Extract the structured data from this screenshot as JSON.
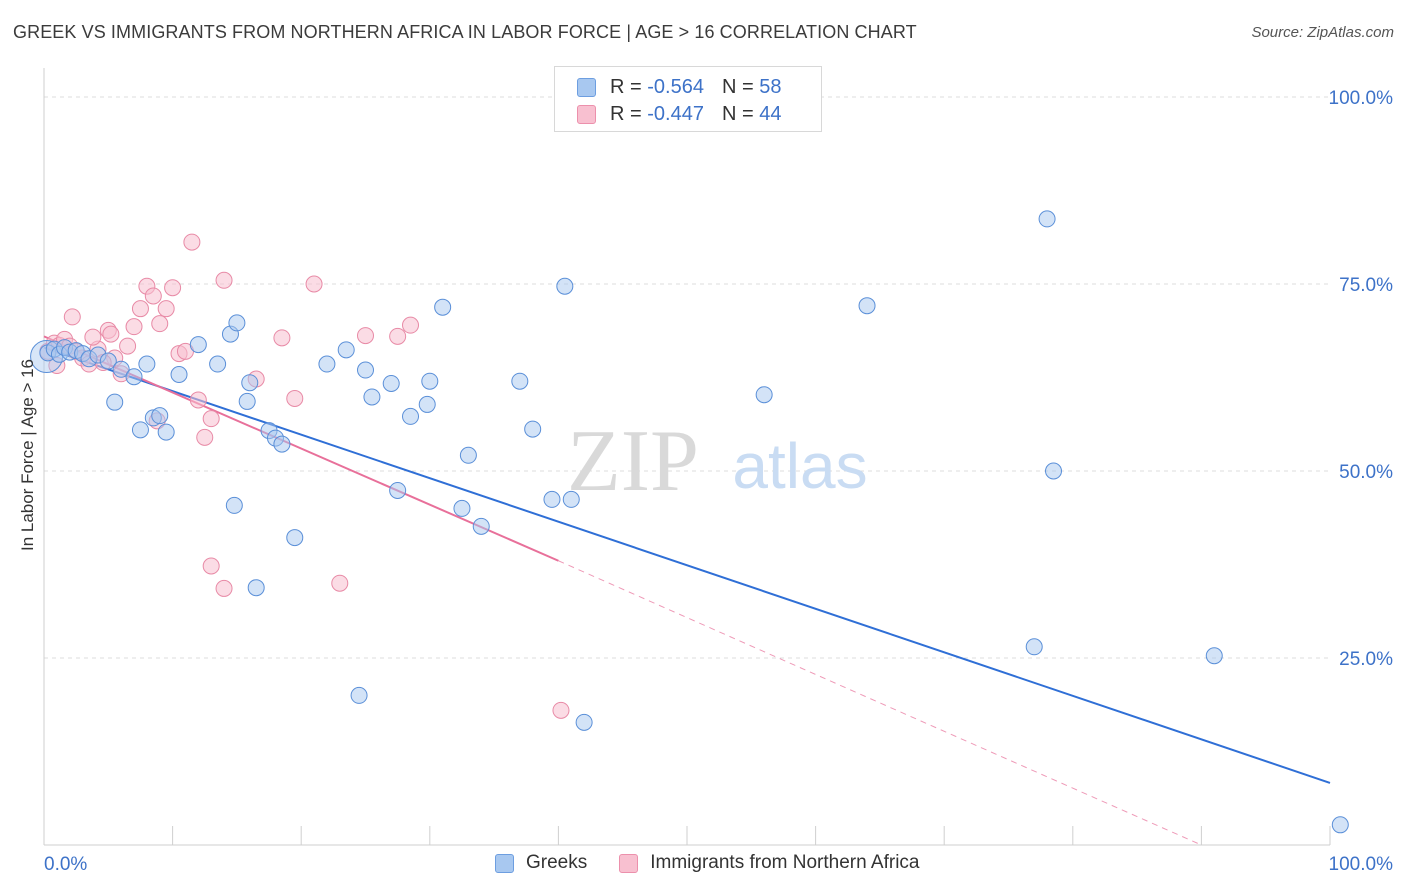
{
  "header": {
    "title": "GREEK VS IMMIGRANTS FROM NORTHERN AFRICA IN LABOR FORCE | AGE > 16 CORRELATION CHART",
    "source": "Source: ZipAtlas.com"
  },
  "watermark": {
    "zip": "ZIP",
    "atlas": "atlas"
  },
  "stats_legend": [
    {
      "r_label": "R =",
      "r_value": "-0.564",
      "n_label": "N =",
      "n_value": "58",
      "color": "#a8c8f0",
      "border": "#6d9ee0"
    },
    {
      "r_label": "R =",
      "r_value": "-0.447",
      "n_label": "N =",
      "n_value": "44",
      "color": "#f8c0d0",
      "border": "#ec90ac"
    }
  ],
  "bottom_legend": [
    {
      "label": "Greeks",
      "color": "#a8c8f0",
      "border": "#6d9ee0"
    },
    {
      "label": "Immigrants from Northern Africa",
      "color": "#f8c0d0",
      "border": "#ec90ac"
    }
  ],
  "chart_data": {
    "type": "scatter",
    "xlabel": "",
    "ylabel": "In Labor Force | Age > 16",
    "xlim": [
      0,
      100
    ],
    "ylim": [
      0,
      100
    ],
    "x_tick_labels": {
      "left": "0.0%",
      "right": "100.0%"
    },
    "y_ticks": [
      {
        "value": 100,
        "label": "100.0%"
      },
      {
        "value": 75,
        "label": "75.0%"
      },
      {
        "value": 50,
        "label": "50.0%"
      },
      {
        "value": 25,
        "label": "25.0%"
      }
    ],
    "grid": "horizontal dashed",
    "legend_position": "top-center",
    "colors": {
      "greeks_fill": "#a8c8f0",
      "greeks_stroke": "#5a8fd8",
      "greeks_line": "#2f6fd6",
      "naf_fill": "#f8c0d0",
      "naf_stroke": "#e88aa6",
      "naf_line": "#e8709a",
      "tick_label": "#3d72c8"
    },
    "series": [
      {
        "name": "Greeks",
        "trend": {
          "x0": 0,
          "y0": 66.5,
          "x1": 100,
          "y1": 8.3
        },
        "points": [
          [
            0.3,
            65.8
          ],
          [
            0.8,
            66.3
          ],
          [
            1.2,
            65.6
          ],
          [
            1.6,
            66.5
          ],
          [
            2.0,
            65.9
          ],
          [
            2.5,
            66.1
          ],
          [
            3.0,
            65.7
          ],
          [
            3.5,
            65.0
          ],
          [
            4.2,
            65.5
          ],
          [
            5.0,
            64.7
          ],
          [
            6.0,
            63.6
          ],
          [
            7.0,
            62.6
          ],
          [
            8.0,
            64.3
          ],
          [
            5.5,
            59.2
          ],
          [
            7.5,
            55.5
          ],
          [
            8.5,
            57.1
          ],
          [
            9.0,
            57.4
          ],
          [
            9.5,
            55.2
          ],
          [
            10.5,
            62.9
          ],
          [
            12.0,
            66.9
          ],
          [
            13.5,
            64.3
          ],
          [
            14.5,
            68.3
          ],
          [
            15.0,
            69.8
          ],
          [
            15.8,
            59.3
          ],
          [
            16.0,
            61.8
          ],
          [
            17.5,
            55.4
          ],
          [
            18.0,
            54.4
          ],
          [
            18.5,
            53.6
          ],
          [
            14.8,
            45.4
          ],
          [
            19.5,
            41.1
          ],
          [
            16.5,
            34.4
          ],
          [
            22.0,
            64.3
          ],
          [
            23.5,
            66.2
          ],
          [
            25.0,
            63.5
          ],
          [
            25.5,
            59.9
          ],
          [
            27.0,
            61.7
          ],
          [
            28.5,
            57.3
          ],
          [
            29.8,
            58.9
          ],
          [
            31.0,
            71.9
          ],
          [
            30.0,
            62.0
          ],
          [
            27.5,
            47.4
          ],
          [
            33.0,
            52.1
          ],
          [
            32.5,
            45.0
          ],
          [
            34.0,
            42.6
          ],
          [
            37.0,
            62.0
          ],
          [
            38.0,
            55.6
          ],
          [
            40.5,
            74.7
          ],
          [
            39.5,
            46.2
          ],
          [
            41.0,
            46.2
          ],
          [
            42.0,
            16.4
          ],
          [
            24.5,
            20.0
          ],
          [
            56.0,
            60.2
          ],
          [
            64.0,
            72.1
          ],
          [
            78.0,
            83.7
          ],
          [
            78.5,
            50.0
          ],
          [
            77.0,
            26.5
          ],
          [
            91.0,
            25.3
          ],
          [
            100.8,
            2.7
          ]
        ]
      },
      {
        "name": "Immigrants from Northern Africa",
        "trend": {
          "x0": 0,
          "y0": 68.0,
          "x1": 40,
          "y1": 38.0,
          "dash_x1": 90,
          "dash_y1": 0
        },
        "points": [
          [
            0.3,
            66.0
          ],
          [
            0.8,
            67.1
          ],
          [
            1.2,
            66.8
          ],
          [
            1.6,
            67.6
          ],
          [
            2.0,
            66.7
          ],
          [
            2.5,
            66.0
          ],
          [
            3.0,
            65.1
          ],
          [
            3.5,
            64.3
          ],
          [
            4.2,
            66.3
          ],
          [
            5.0,
            68.8
          ],
          [
            5.5,
            65.1
          ],
          [
            6.0,
            63.0
          ],
          [
            6.5,
            66.7
          ],
          [
            7.0,
            69.3
          ],
          [
            7.5,
            71.7
          ],
          [
            8.0,
            74.7
          ],
          [
            8.5,
            73.4
          ],
          [
            9.0,
            69.7
          ],
          [
            9.5,
            71.7
          ],
          [
            10.0,
            74.5
          ],
          [
            10.5,
            65.7
          ],
          [
            11.0,
            66.0
          ],
          [
            11.5,
            80.6
          ],
          [
            12.0,
            59.5
          ],
          [
            12.5,
            54.5
          ],
          [
            13.0,
            57.0
          ],
          [
            14.0,
            75.5
          ],
          [
            16.5,
            62.3
          ],
          [
            18.5,
            67.8
          ],
          [
            19.5,
            59.7
          ],
          [
            21.0,
            75.0
          ],
          [
            13.0,
            37.3
          ],
          [
            14.0,
            34.3
          ],
          [
            23.0,
            35.0
          ],
          [
            25.0,
            68.1
          ],
          [
            28.5,
            69.5
          ],
          [
            27.5,
            68.0
          ],
          [
            40.2,
            18.0
          ],
          [
            2.2,
            70.6
          ],
          [
            3.8,
            67.9
          ],
          [
            5.2,
            68.3
          ],
          [
            1.0,
            64.1
          ],
          [
            8.8,
            56.7
          ],
          [
            4.6,
            64.5
          ]
        ]
      }
    ]
  }
}
